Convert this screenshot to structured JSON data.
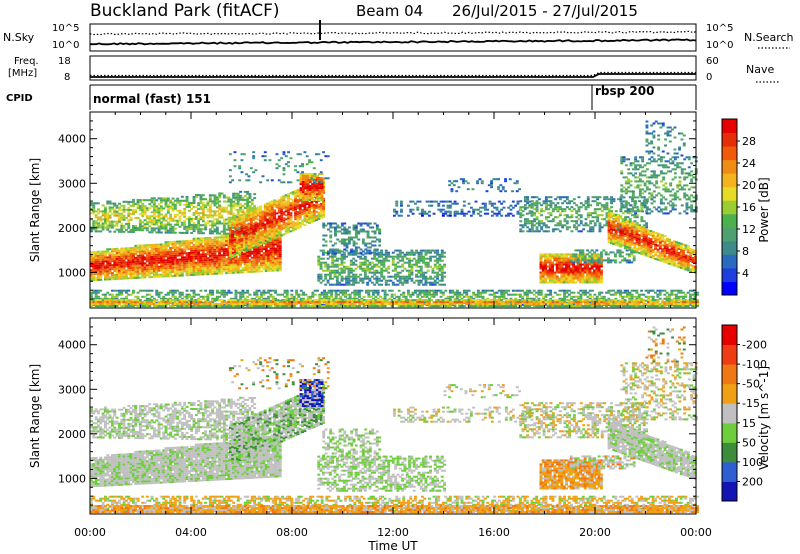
{
  "header": {
    "station": "Buckland Park (fitACF)",
    "beam": "Beam 04",
    "date_range": "26/Jul/2015 - 27/Jul/2015"
  },
  "strip_panels": {
    "nsky": {
      "left_label": "N.Sky",
      "left_ticks": [
        "10^5",
        "10^0"
      ],
      "right_ticks": [
        "10^5",
        "10^0"
      ],
      "right_label": "N.Search"
    },
    "freq": {
      "left_label_line1": "Freq.",
      "left_label_line2": "[MHz]",
      "left_ticks": [
        "18",
        "8"
      ],
      "right_ticks": [
        "60",
        "0"
      ],
      "right_label": "Nave"
    },
    "cpid": {
      "label": "CPID",
      "modes": [
        {
          "name": "normal (fast) 151",
          "start_hour": 0
        },
        {
          "name": "rbsp 200",
          "start_hour": 20
        }
      ]
    }
  },
  "chart_data": [
    {
      "type": "heatmap",
      "name": "power",
      "ylabel": "Slant Range [km]",
      "yticks": [
        1000,
        2000,
        3000,
        4000
      ],
      "ylim": [
        200,
        4600
      ],
      "xlim": [
        0,
        24
      ],
      "colorbar": {
        "label": "Power [dB]",
        "ticks": [
          "4",
          "8",
          "12",
          "16",
          "20",
          "24",
          "28"
        ],
        "colors": [
          "#0000ff",
          "#1e3ee0",
          "#2a6bc0",
          "#3c8a8a",
          "#4fa070",
          "#4cb04c",
          "#9acd32",
          "#e6dc28",
          "#f5b41e",
          "#f08c14",
          "#f05a0a",
          "#e62d0a",
          "#e60000"
        ]
      }
    },
    {
      "type": "heatmap",
      "name": "velocity",
      "ylabel": "Slant Range [km]",
      "yticks": [
        1000,
        2000,
        3000,
        4000
      ],
      "ylim": [
        200,
        4600
      ],
      "xlim": [
        0,
        24
      ],
      "colorbar": {
        "label": "Velocity [m s^-1]",
        "ticks": [
          "200",
          "100",
          "50",
          "15",
          "-15",
          "-50",
          "-100",
          "-200"
        ],
        "colors": [
          "#1414b4",
          "#2d5fd2",
          "#3c8c3c",
          "#6ecd3c",
          "#c0c0c0",
          "#f0a014",
          "#f07814",
          "#f03c14",
          "#e60000"
        ]
      }
    }
  ],
  "x_axis": {
    "ticks": [
      "00:00",
      "04:00",
      "08:00",
      "12:00",
      "16:00",
      "20:00",
      "00:00"
    ],
    "label": "Time UT"
  }
}
